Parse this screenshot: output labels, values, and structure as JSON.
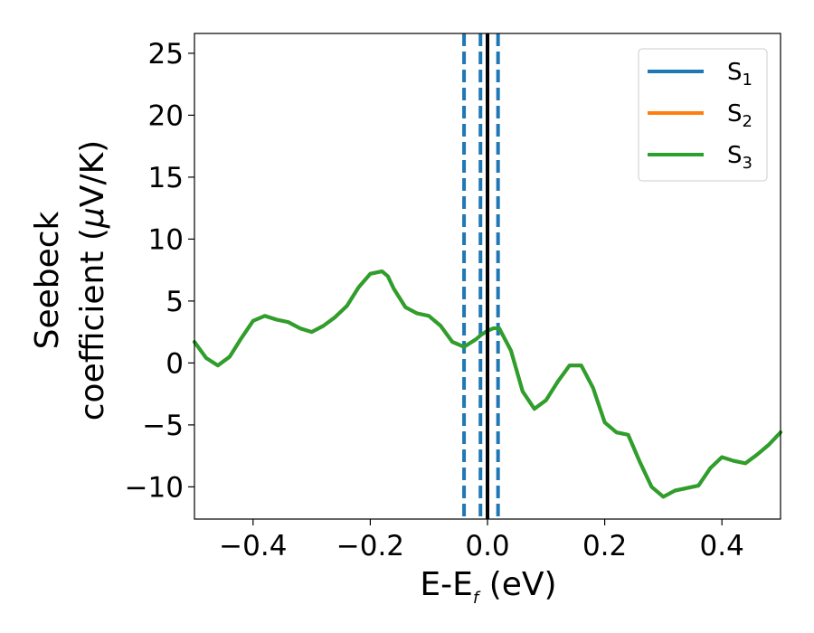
{
  "chart_data": {
    "type": "line",
    "xlabel_main": "E-E",
    "xlabel_sub": "f",
    "xlabel_tail": " (eV)",
    "ylabel_line1": "Seebeck",
    "ylabel_line2_pre": "coefficient  (",
    "ylabel_line2_mu": "μ",
    "ylabel_line2_post": "V/K)",
    "xlim": [
      -0.5,
      0.5
    ],
    "ylim": [
      -12.6,
      26.6
    ],
    "xticks": [
      -0.4,
      -0.2,
      0.0,
      0.2,
      0.4
    ],
    "xtick_labels": [
      "−0.4",
      "−0.2",
      "0.0",
      "0.2",
      "0.4"
    ],
    "yticks": [
      -10,
      -5,
      0,
      5,
      10,
      15,
      20,
      25
    ],
    "ytick_labels": [
      "−10",
      "−5",
      "0",
      "5",
      "10",
      "15",
      "20",
      "25"
    ],
    "legend": [
      {
        "base": "S",
        "sub": "1",
        "color": "#1f77b4"
      },
      {
        "base": "S",
        "sub": "2",
        "color": "#ff7f0e"
      },
      {
        "base": "S",
        "sub": "3",
        "color": "#2ca02c"
      }
    ],
    "legend_placement": "top-right",
    "vlines": [
      {
        "x": 0.0,
        "style": "solid",
        "color": "#000000"
      },
      {
        "x": -0.04,
        "style": "dashed",
        "color": "#1f77b4"
      },
      {
        "x": -0.012,
        "style": "dashed",
        "color": "#1f77b4"
      },
      {
        "x": 0.018,
        "style": "dashed",
        "color": "#1f77b4"
      }
    ],
    "series": [
      {
        "name": "S1",
        "color": "#1f77b4",
        "x": [
          -0.5,
          -0.48,
          -0.46,
          -0.44,
          -0.42,
          -0.4,
          -0.38,
          -0.36,
          -0.34,
          -0.32,
          -0.3,
          -0.28,
          -0.26,
          -0.24,
          -0.22,
          -0.2,
          -0.18,
          -0.17,
          -0.16,
          -0.14,
          -0.12,
          -0.1,
          -0.08,
          -0.06,
          -0.04,
          -0.02,
          -0.01,
          0.0,
          0.01,
          0.02,
          0.04,
          0.06,
          0.08,
          0.1,
          0.12,
          0.14,
          0.16,
          0.18,
          0.2,
          0.22,
          0.24,
          0.26,
          0.28,
          0.3,
          0.32,
          0.34,
          0.36,
          0.38,
          0.4,
          0.42,
          0.44,
          0.46,
          0.48,
          0.5
        ],
        "y": [
          1.7,
          0.4,
          -0.2,
          0.5,
          2.0,
          3.4,
          3.8,
          3.5,
          3.3,
          2.8,
          2.5,
          3.0,
          3.7,
          4.6,
          6.1,
          7.2,
          7.4,
          7.0,
          6.0,
          4.5,
          4.0,
          3.8,
          3.0,
          1.7,
          1.3,
          1.9,
          2.3,
          2.6,
          2.8,
          2.8,
          1.0,
          -2.3,
          -3.7,
          -3.0,
          -1.5,
          -0.2,
          -0.2,
          -2.0,
          -4.8,
          -5.6,
          -5.8,
          -8.0,
          -10.0,
          -10.8,
          -10.3,
          -10.1,
          -9.9,
          -8.5,
          -7.6,
          -7.9,
          -8.1,
          -7.4,
          -6.6,
          -5.6
        ]
      },
      {
        "name": "S2",
        "color": "#ff7f0e",
        "x": [
          -0.5,
          -0.48,
          -0.46,
          -0.44,
          -0.42,
          -0.4,
          -0.38,
          -0.36,
          -0.34,
          -0.32,
          -0.3,
          -0.28,
          -0.26,
          -0.24,
          -0.22,
          -0.2,
          -0.18,
          -0.17,
          -0.16,
          -0.14,
          -0.12,
          -0.1,
          -0.08,
          -0.06,
          -0.04,
          -0.02,
          -0.01,
          0.0,
          0.01,
          0.02,
          0.04,
          0.06,
          0.08,
          0.1,
          0.12,
          0.14,
          0.16,
          0.18,
          0.2,
          0.22,
          0.24,
          0.26,
          0.28,
          0.3,
          0.32,
          0.34,
          0.36,
          0.38,
          0.4,
          0.42,
          0.44,
          0.46,
          0.48,
          0.5
        ],
        "y": [
          1.7,
          0.4,
          -0.2,
          0.5,
          2.0,
          3.4,
          3.8,
          3.5,
          3.3,
          2.8,
          2.5,
          3.0,
          3.7,
          4.6,
          6.1,
          7.2,
          7.4,
          7.0,
          6.0,
          4.5,
          4.0,
          3.8,
          3.0,
          1.7,
          1.3,
          1.9,
          2.3,
          2.6,
          2.8,
          2.8,
          1.0,
          -2.3,
          -3.7,
          -3.0,
          -1.5,
          -0.2,
          -0.2,
          -2.0,
          -4.8,
          -5.6,
          -5.8,
          -8.0,
          -10.0,
          -10.8,
          -10.3,
          -10.1,
          -9.9,
          -8.5,
          -7.6,
          -7.9,
          -8.1,
          -7.4,
          -6.6,
          -5.6
        ]
      },
      {
        "name": "S3",
        "color": "#2ca02c",
        "x": [
          -0.5,
          -0.48,
          -0.46,
          -0.44,
          -0.42,
          -0.4,
          -0.38,
          -0.36,
          -0.34,
          -0.32,
          -0.3,
          -0.28,
          -0.26,
          -0.24,
          -0.22,
          -0.2,
          -0.18,
          -0.17,
          -0.16,
          -0.14,
          -0.12,
          -0.1,
          -0.08,
          -0.06,
          -0.04,
          -0.02,
          -0.01,
          0.0,
          0.01,
          0.02,
          0.04,
          0.06,
          0.08,
          0.1,
          0.12,
          0.14,
          0.16,
          0.18,
          0.2,
          0.22,
          0.24,
          0.26,
          0.28,
          0.3,
          0.32,
          0.34,
          0.36,
          0.38,
          0.4,
          0.42,
          0.44,
          0.46,
          0.48,
          0.5
        ],
        "y": [
          1.7,
          0.4,
          -0.2,
          0.5,
          2.0,
          3.4,
          3.8,
          3.5,
          3.3,
          2.8,
          2.5,
          3.0,
          3.7,
          4.6,
          6.1,
          7.2,
          7.4,
          7.0,
          6.0,
          4.5,
          4.0,
          3.8,
          3.0,
          1.7,
          1.3,
          1.9,
          2.3,
          2.6,
          2.8,
          2.8,
          1.0,
          -2.3,
          -3.7,
          -3.0,
          -1.5,
          -0.2,
          -0.2,
          -2.0,
          -4.8,
          -5.6,
          -5.8,
          -8.0,
          -10.0,
          -10.8,
          -10.3,
          -10.1,
          -9.9,
          -8.5,
          -7.6,
          -7.9,
          -8.1,
          -7.4,
          -6.6,
          -5.6
        ]
      }
    ]
  }
}
